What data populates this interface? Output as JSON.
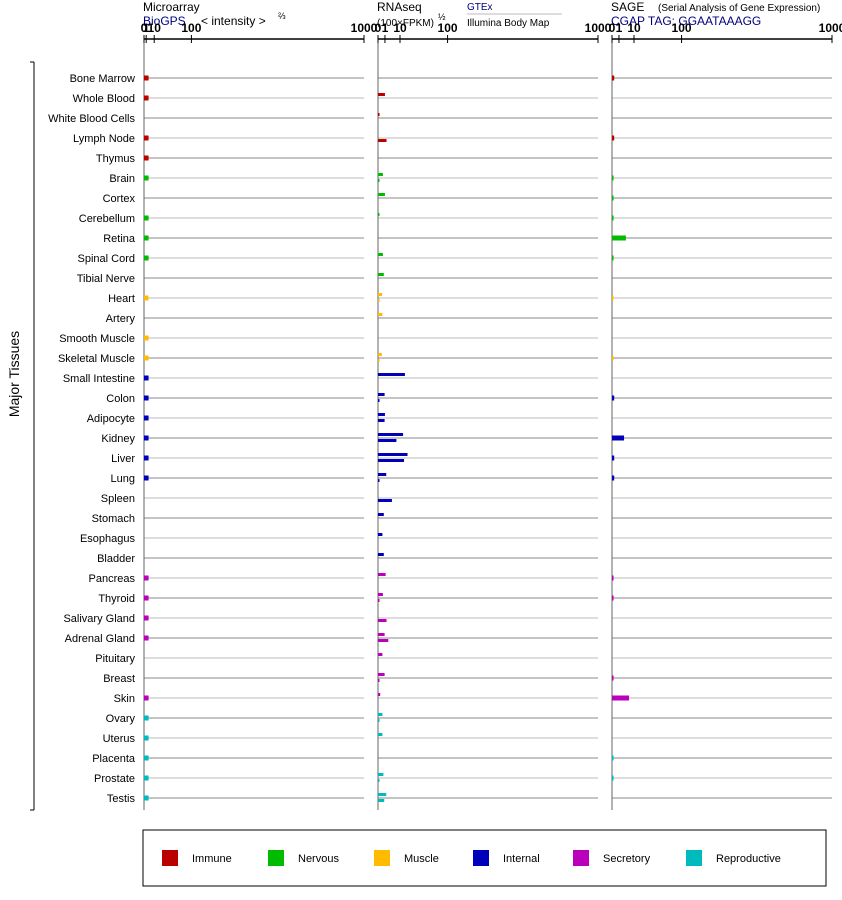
{
  "colors": {
    "immune": "#bb0000",
    "nervous": "#00bb00",
    "muscle": "#ffbb00",
    "internal": "#0000bb",
    "secretory": "#bb00bb",
    "reproductive": "#00bbbb"
  },
  "headers": {
    "microarray": {
      "title": "Microarray",
      "source": "BioGPS",
      "unit_prefix": "< intensity >",
      "unit_exp": "⅔"
    },
    "rnaseq": {
      "title": "RNAseq",
      "unit": "(100×FPKM)",
      "unit_exp": "½",
      "source1": "GTEx",
      "source2": "Illumina Body Map"
    },
    "sage": {
      "title": "SAGE",
      "subtitle": "(Serial Analysis of Gene Expression)",
      "source": "CGAP TAG: GGAATAAAGG"
    }
  },
  "y_axis_label": "Major Tissues",
  "tick_labels": [
    "0",
    "1",
    "10",
    "100",
    "1000"
  ],
  "legend": [
    {
      "key": "immune",
      "label": "Immune"
    },
    {
      "key": "nervous",
      "label": "Nervous"
    },
    {
      "key": "muscle",
      "label": "Muscle"
    },
    {
      "key": "internal",
      "label": "Internal"
    },
    {
      "key": "secretory",
      "label": "Secretory"
    },
    {
      "key": "reproductive",
      "label": "Reproductive"
    }
  ],
  "chart_data": {
    "type": "bar",
    "scale": "power-transformed (microarray: x^(2/3), rnaseq: x^(1/2), sage: x^(1/2))",
    "xlim": [
      0,
      1000
    ],
    "series": [
      {
        "name": "Microarray"
      },
      {
        "name": "GTEx"
      },
      {
        "name": "Illumina Body Map"
      },
      {
        "name": "SAGE"
      }
    ],
    "tissues": [
      {
        "name": "Bone Marrow",
        "group": "immune",
        "microarray": 3,
        "gtex": null,
        "ibm": null,
        "sage": 0.1
      },
      {
        "name": "Whole Blood",
        "group": "immune",
        "microarray": 3,
        "gtex": 1,
        "ibm": null,
        "sage": null
      },
      {
        "name": "White Blood Cells",
        "group": "immune",
        "microarray": null,
        "gtex": 0.05,
        "ibm": null,
        "sage": null
      },
      {
        "name": "Lymph Node",
        "group": "immune",
        "microarray": 3,
        "gtex": null,
        "ibm": 1.5,
        "sage": 0.1
      },
      {
        "name": "Thymus",
        "group": "immune",
        "microarray": 3,
        "gtex": null,
        "ibm": null,
        "sage": null
      },
      {
        "name": "Brain",
        "group": "nervous",
        "microarray": 3,
        "gtex": 0.5,
        "ibm": 0.02,
        "sage": 0.05
      },
      {
        "name": "Cortex",
        "group": "nervous",
        "microarray": null,
        "gtex": 1,
        "ibm": null,
        "sage": 0.05
      },
      {
        "name": "Cerebellum",
        "group": "nervous",
        "microarray": 3,
        "gtex": 0.03,
        "ibm": null,
        "sage": 0.05
      },
      {
        "name": "Retina",
        "group": "nervous",
        "microarray": 3,
        "gtex": null,
        "ibm": null,
        "sage": 4
      },
      {
        "name": "Spinal Cord",
        "group": "nervous",
        "microarray": 3,
        "gtex": 0.5,
        "ibm": null,
        "sage": 0.05
      },
      {
        "name": "Tibial Nerve",
        "group": "nervous",
        "microarray": null,
        "gtex": 0.7,
        "ibm": null,
        "sage": null
      },
      {
        "name": "Heart",
        "group": "muscle",
        "microarray": 2.8,
        "gtex": 0.35,
        "ibm": 0.02,
        "sage": 0.02
      },
      {
        "name": "Artery",
        "group": "muscle",
        "microarray": null,
        "gtex": 0.4,
        "ibm": null,
        "sage": null
      },
      {
        "name": "Smooth Muscle",
        "group": "muscle",
        "microarray": 3,
        "gtex": null,
        "ibm": null,
        "sage": null
      },
      {
        "name": "Skeletal Muscle",
        "group": "muscle",
        "microarray": 3,
        "gtex": 0.3,
        "ibm": 0.02,
        "sage": 0.02
      },
      {
        "name": "Small Intestine",
        "group": "internal",
        "microarray": 3,
        "gtex": 15,
        "ibm": null,
        "sage": null
      },
      {
        "name": "Colon",
        "group": "internal",
        "microarray": 3,
        "gtex": 0.9,
        "ibm": 0.02,
        "sage": 0.1
      },
      {
        "name": "Adipocyte",
        "group": "internal",
        "microarray": 3,
        "gtex": 1,
        "ibm": 0.9,
        "sage": null
      },
      {
        "name": "Kidney",
        "group": "internal",
        "microarray": 3,
        "gtex": 13,
        "ibm": 7,
        "sage": 3
      },
      {
        "name": "Liver",
        "group": "internal",
        "microarray": 3,
        "gtex": 18,
        "ibm": 14,
        "sage": 0.1
      },
      {
        "name": "Lung",
        "group": "internal",
        "microarray": 3,
        "gtex": 1.4,
        "ibm": 0.03,
        "sage": 0.1
      },
      {
        "name": "Spleen",
        "group": "internal",
        "microarray": null,
        "gtex": null,
        "ibm": 4,
        "sage": null
      },
      {
        "name": "Stomach",
        "group": "internal",
        "microarray": null,
        "gtex": 0.7,
        "ibm": null,
        "sage": null
      },
      {
        "name": "Esophagus",
        "group": "internal",
        "microarray": null,
        "gtex": 0.4,
        "ibm": null,
        "sage": null
      },
      {
        "name": "Bladder",
        "group": "internal",
        "microarray": null,
        "gtex": 0.7,
        "ibm": null,
        "sage": null
      },
      {
        "name": "Pancreas",
        "group": "secretory",
        "microarray": 3,
        "gtex": 1.2,
        "ibm": null,
        "sage": 0.05
      },
      {
        "name": "Thyroid",
        "group": "secretory",
        "microarray": 3,
        "gtex": 0.5,
        "ibm": 0.03,
        "sage": 0.05
      },
      {
        "name": "Salivary Gland",
        "group": "secretory",
        "microarray": 3,
        "gtex": null,
        "ibm": 1.5,
        "sage": null
      },
      {
        "name": "Adrenal Gland",
        "group": "secretory",
        "microarray": 3,
        "gtex": 0.9,
        "ibm": 2.2,
        "sage": null
      },
      {
        "name": "Pituitary",
        "group": "secretory",
        "microarray": null,
        "gtex": 0.4,
        "ibm": null,
        "sage": null
      },
      {
        "name": "Breast",
        "group": "secretory",
        "microarray": null,
        "gtex": 0.9,
        "ibm": 0.03,
        "sage": 0.05
      },
      {
        "name": "Skin",
        "group": "secretory",
        "microarray": 3,
        "gtex": 0.1,
        "ibm": null,
        "sage": 6
      },
      {
        "name": "Ovary",
        "group": "reproductive",
        "microarray": 3,
        "gtex": 0.4,
        "ibm": 0.02,
        "sage": null
      },
      {
        "name": "Uterus",
        "group": "reproductive",
        "microarray": 3,
        "gtex": 0.4,
        "ibm": null,
        "sage": null
      },
      {
        "name": "Placenta",
        "group": "reproductive",
        "microarray": 3,
        "gtex": null,
        "ibm": null,
        "sage": 0.05
      },
      {
        "name": "Prostate",
        "group": "reproductive",
        "microarray": 3,
        "gtex": 0.6,
        "ibm": 0.03,
        "sage": 0.05
      },
      {
        "name": "Testis",
        "group": "reproductive",
        "microarray": 3,
        "gtex": 1.4,
        "ibm": 0.8,
        "sage": null
      }
    ]
  }
}
